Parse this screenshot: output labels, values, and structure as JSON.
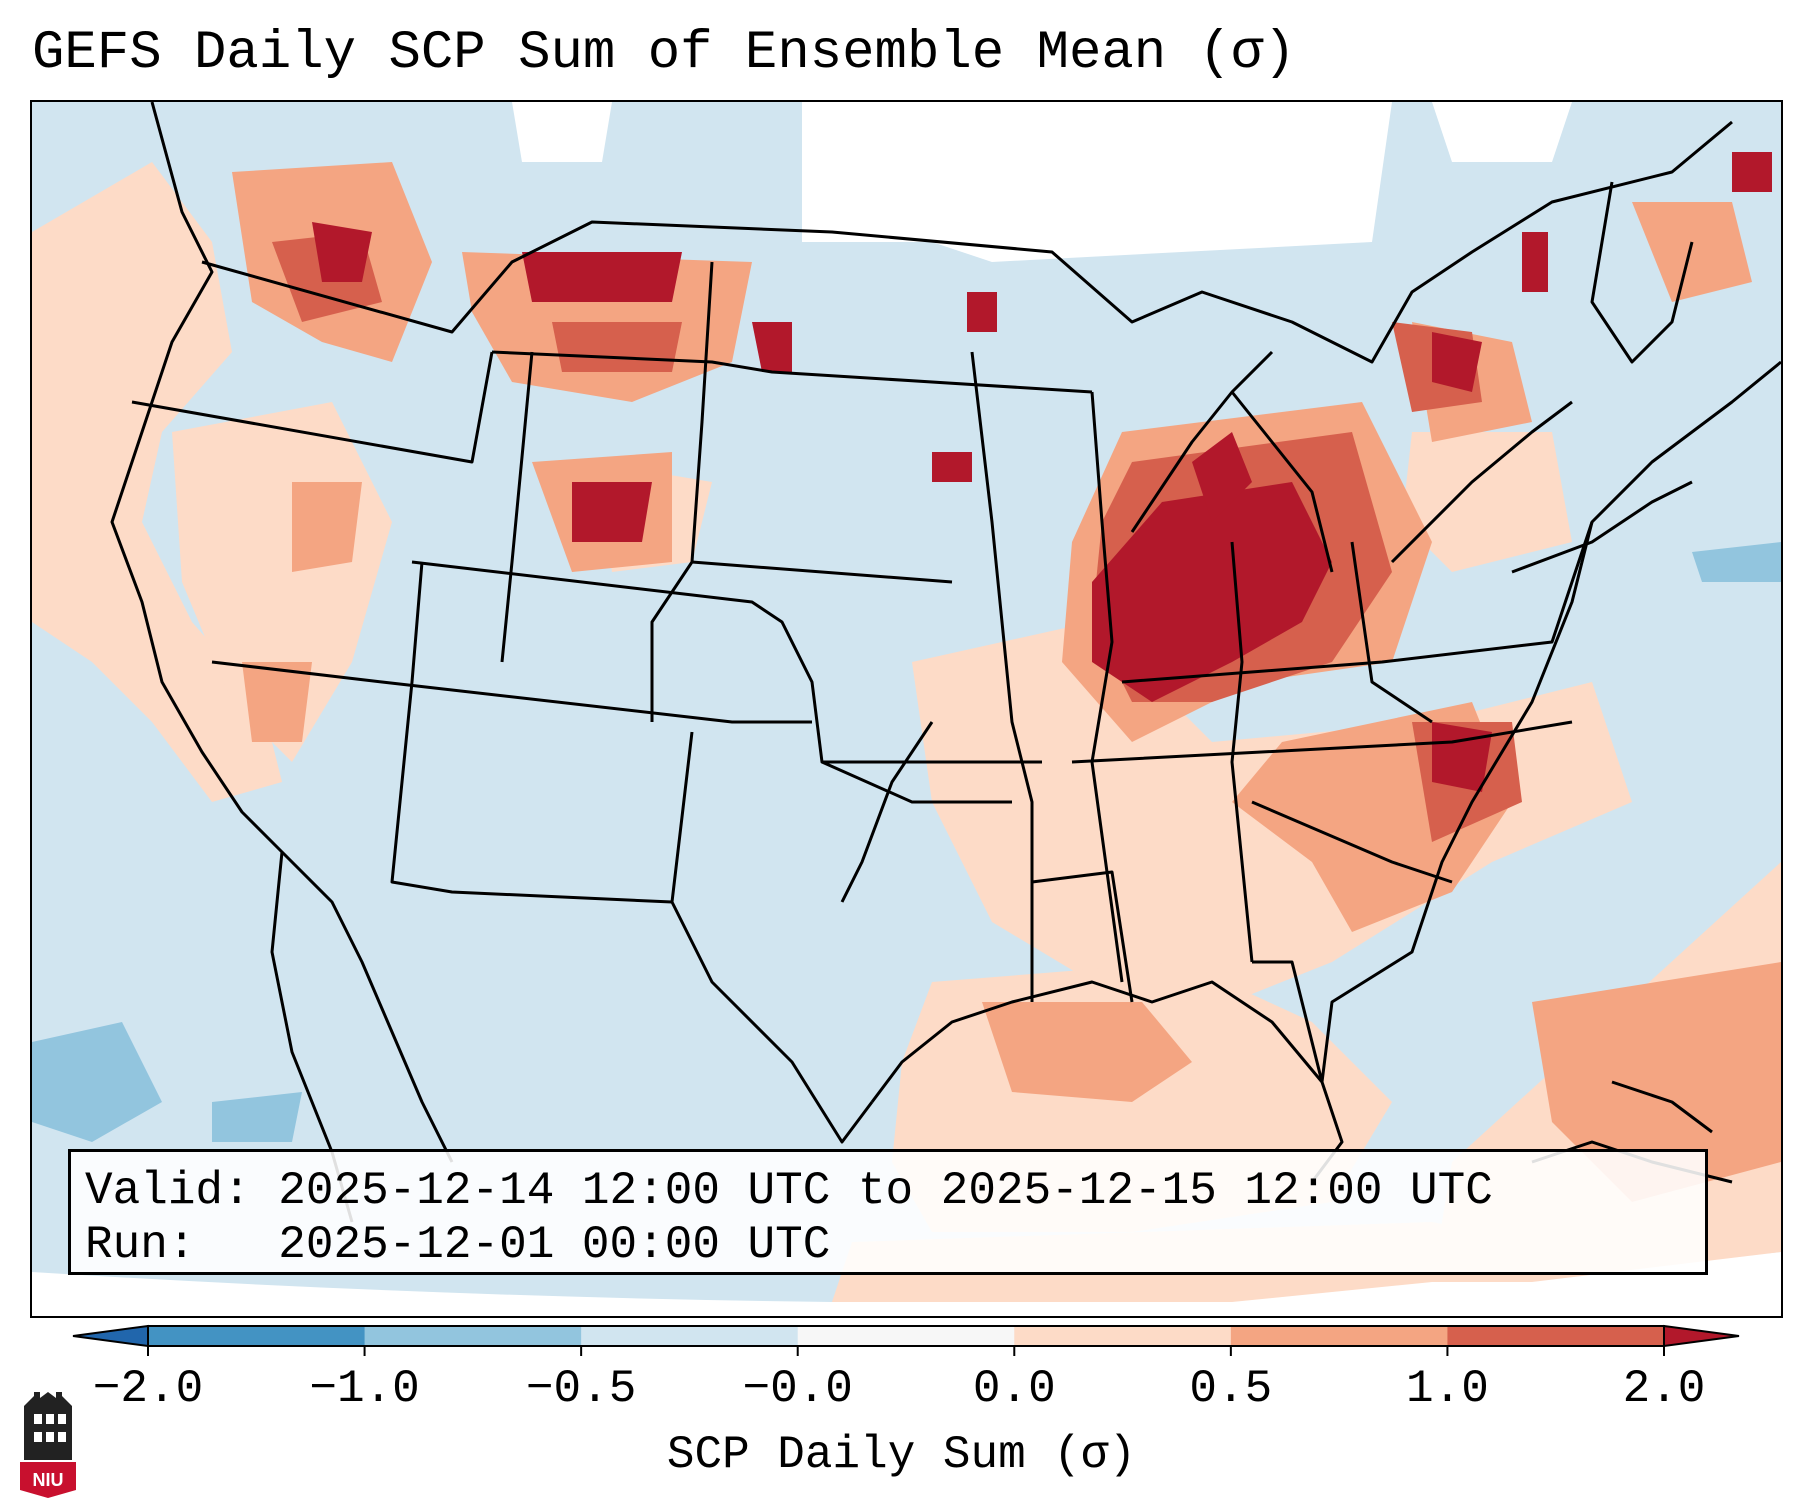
{
  "title": "GEFS Daily SCP Sum of Ensemble Mean (σ)",
  "info": {
    "valid_label": "Valid:",
    "valid_value": "2025-12-14 12:00 UTC to 2025-12-15 12:00 UTC",
    "run_label": "Run:",
    "run_value": "2025-12-01 00:00 UTC"
  },
  "colorbar": {
    "label": "SCP Daily Sum (σ)",
    "ticks": [
      "−2.0",
      "−1.0",
      "−0.5",
      "−0.0",
      "0.0",
      "0.5",
      "1.0",
      "2.0"
    ],
    "bins": [
      {
        "from": -2.0,
        "to": -1.0,
        "color": "#4393c3"
      },
      {
        "from": -1.0,
        "to": -0.5,
        "color": "#92c5de"
      },
      {
        "from": -0.5,
        "to": -0.0,
        "color": "#d1e5f0"
      },
      {
        "from": -0.0,
        "to": 0.0,
        "color": "#f7f7f7"
      },
      {
        "from": 0.0,
        "to": 0.5,
        "color": "#fddbc7"
      },
      {
        "from": 0.5,
        "to": 1.0,
        "color": "#f4a582"
      },
      {
        "from": 1.0,
        "to": 2.0,
        "color": "#d6604d"
      }
    ],
    "under_color": "#2166ac",
    "over_color": "#b2182b"
  },
  "colors": {
    "very_high": "#b2182b",
    "high": "#d6604d",
    "moderate": "#f4a582",
    "low": "#fddbc7",
    "near_zero": "#ffffff",
    "below": "#d1e5f0",
    "well_below": "#92c5de"
  },
  "logo": {
    "text": "NIU",
    "color": "#c8102e"
  }
}
